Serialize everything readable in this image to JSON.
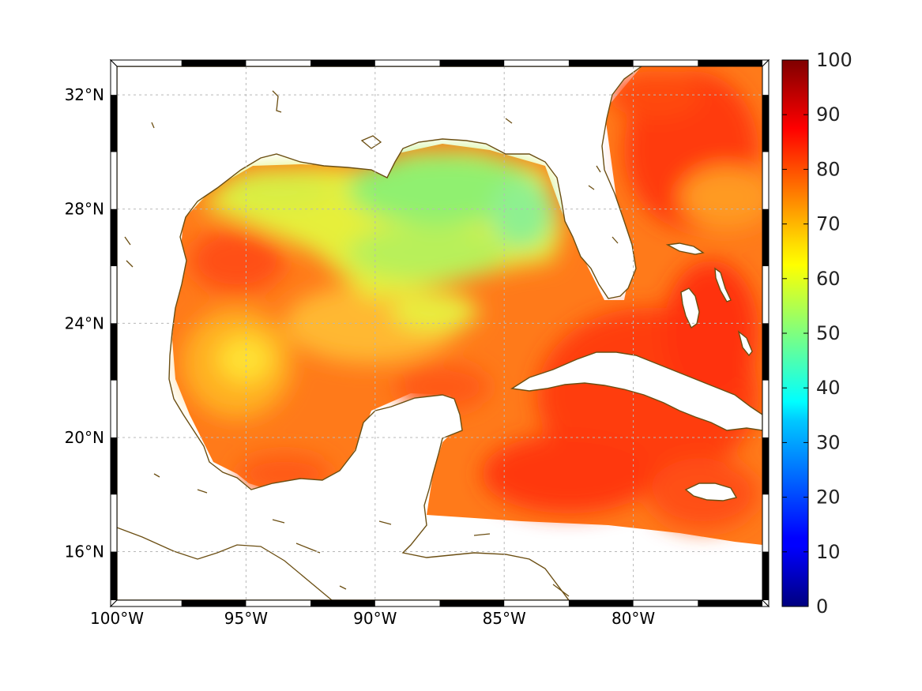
{
  "map": {
    "lon_range": [
      -100,
      -75
    ],
    "lat_range": [
      14.3,
      33
    ],
    "lon_ticks": [
      {
        "value": -100,
        "label": "100°W"
      },
      {
        "value": -95,
        "label": "95°W"
      },
      {
        "value": -90,
        "label": "90°W"
      },
      {
        "value": -85,
        "label": "85°W"
      },
      {
        "value": -80,
        "label": "80°W"
      }
    ],
    "lat_ticks": [
      {
        "value": 16,
        "label": "16°N"
      },
      {
        "value": 20,
        "label": "20°N"
      },
      {
        "value": 24,
        "label": "24°N"
      },
      {
        "value": 28,
        "label": "28°N"
      },
      {
        "value": 32,
        "label": "32°N"
      }
    ],
    "grid": true,
    "field_range_by_region": [
      {
        "region": "northern Gulf of Mexico",
        "min": 45,
        "max": 62
      },
      {
        "region": "western and southern Gulf",
        "min": 68,
        "max": 88
      },
      {
        "region": "Caribbean Sea",
        "min": 78,
        "max": 92
      },
      {
        "region": "Atlantic off Florida",
        "min": 78,
        "max": 92
      }
    ],
    "coastline_color": "#6b4e12"
  },
  "colorbar": {
    "min": 0,
    "max": 100,
    "ticks": [
      "0",
      "10",
      "20",
      "30",
      "40",
      "50",
      "60",
      "70",
      "80",
      "90",
      "100"
    ],
    "colormap": "jet"
  }
}
